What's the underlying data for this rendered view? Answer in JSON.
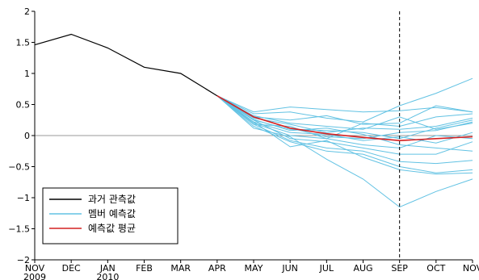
{
  "chart_data": {
    "type": "line",
    "title": "",
    "xlabel": "",
    "ylabel": "",
    "ylim": [
      -2,
      2
    ],
    "yticks": [
      "2",
      "1.5",
      "1",
      "0.5",
      "0",
      "−0.5",
      "−1",
      "−1.5",
      "−2"
    ],
    "ytick_values": [
      2,
      1.5,
      1,
      0.5,
      0,
      -0.5,
      -1,
      -1.5,
      -2
    ],
    "categories": [
      "NOV",
      "DEC",
      "JAN",
      "FEB",
      "MAR",
      "APR",
      "MAY",
      "JUN",
      "JUL",
      "AUG",
      "SEP",
      "OCT",
      "NOV"
    ],
    "year_labels": [
      {
        "index": 0,
        "text": "2009"
      },
      {
        "index": 2,
        "text": "2010"
      }
    ],
    "zero_line": true,
    "vline": {
      "index": 10,
      "style": "dashed"
    },
    "colors": {
      "observed": "#000000",
      "members": "#62c2e3",
      "mean": "#d42020",
      "zero": "#999999"
    },
    "legend": {
      "placement": "bottom-left",
      "entries": [
        {
          "label": "과거 관측값",
          "color": "#000000"
        },
        {
          "label": "멤버 예측값",
          "color": "#62c2e3"
        },
        {
          "label": "예측값 평균",
          "color": "#d42020"
        }
      ]
    },
    "observed": {
      "x": [
        "NOV",
        "DEC",
        "JAN",
        "FEB",
        "MAR",
        "APR"
      ],
      "values": [
        1.46,
        1.63,
        1.41,
        1.1,
        1.0,
        0.64
      ]
    },
    "members_x": [
      "APR",
      "MAY",
      "JUN",
      "JUL",
      "AUG",
      "SEP",
      "OCT",
      "NOV"
    ],
    "members": [
      [
        0.64,
        0.38,
        0.46,
        0.42,
        0.38,
        0.4,
        0.45,
        0.38
      ],
      [
        0.64,
        0.35,
        0.38,
        0.28,
        0.22,
        0.48,
        0.68,
        0.92
      ],
      [
        0.64,
        0.3,
        0.25,
        0.32,
        0.18,
        0.2,
        0.48,
        0.38
      ],
      [
        0.64,
        0.32,
        0.2,
        0.15,
        0.1,
        0.3,
        0.1,
        0.2
      ],
      [
        0.64,
        0.28,
        0.18,
        0.05,
        0.12,
        0.1,
        0.15,
        0.28
      ],
      [
        0.64,
        0.25,
        0.1,
        0.08,
        0.05,
        -0.05,
        0.12,
        0.25
      ],
      [
        0.64,
        0.3,
        0.12,
        -0.02,
        -0.05,
        0.05,
        0.08,
        0.22
      ],
      [
        0.64,
        0.22,
        0.05,
        0.02,
        -0.08,
        -0.02,
        -0.12,
        0.05
      ],
      [
        0.64,
        0.2,
        0.0,
        -0.05,
        -0.15,
        -0.2,
        0.0,
        -0.05
      ],
      [
        0.64,
        0.25,
        -0.05,
        -0.1,
        -0.2,
        -0.3,
        -0.3,
        -0.1
      ],
      [
        0.64,
        0.18,
        -0.08,
        -0.2,
        -0.25,
        -0.42,
        -0.45,
        -0.4
      ],
      [
        0.64,
        0.15,
        -0.1,
        -0.25,
        -0.3,
        -0.5,
        -0.6,
        -0.55
      ],
      [
        0.64,
        0.22,
        -0.18,
        -0.08,
        -0.35,
        -0.55,
        -0.62,
        -0.6
      ],
      [
        0.64,
        0.12,
        -0.02,
        -0.38,
        -0.7,
        -1.15,
        -0.9,
        -0.7
      ],
      [
        0.64,
        0.26,
        0.08,
        0.12,
        0.02,
        -0.15,
        -0.2,
        -0.25
      ],
      [
        0.64,
        0.18,
        0.15,
        -0.05,
        0.2,
        0.15,
        0.3,
        0.35
      ]
    ],
    "mean": {
      "x": [
        "APR",
        "MAY",
        "JUN",
        "JUL",
        "AUG",
        "SEP",
        "OCT",
        "NOV"
      ],
      "values": [
        0.64,
        0.3,
        0.12,
        0.03,
        -0.03,
        -0.08,
        -0.05,
        -0.02
      ]
    }
  }
}
